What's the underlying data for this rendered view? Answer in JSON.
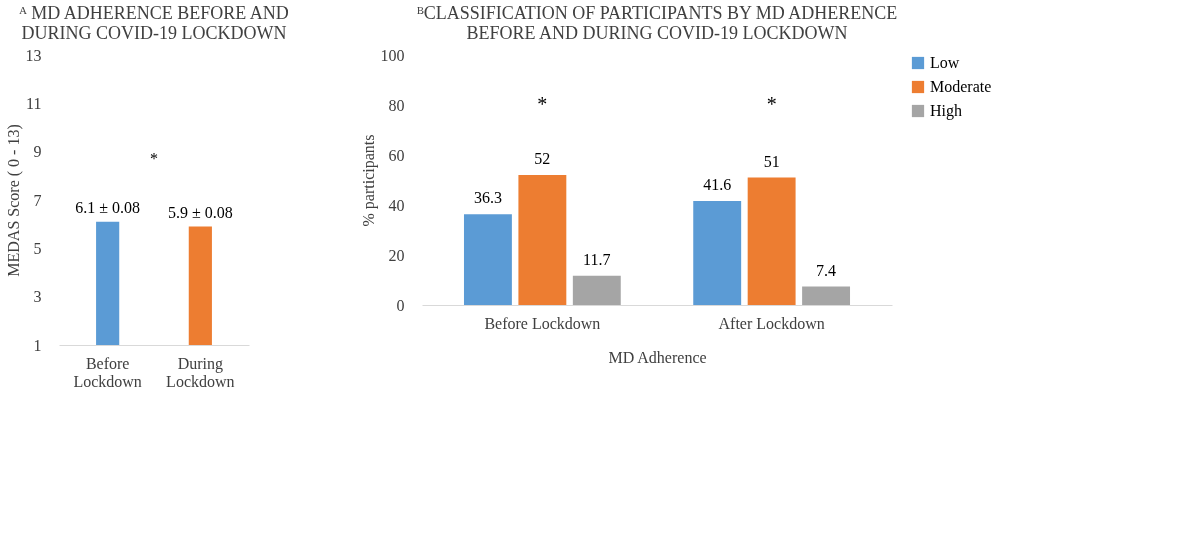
{
  "chart_data": [
    {
      "type": "bar",
      "title": "ᴬ MD ADHERENCE BEFORE AND DURING COVID-19 LOCKDOWN",
      "ylabel": "MEDAS Score  ( 0 - 13)",
      "categories": [
        "Before Lockdown",
        "During Lockdown"
      ],
      "values": [
        6.1,
        5.9
      ],
      "colors": [
        "#5b9bd5",
        "#ed7d31"
      ],
      "value_labels": [
        "6.1 ± 0.08",
        "5.9 ± 0.08"
      ],
      "ylim": [
        1,
        13
      ],
      "yticks": [
        1,
        3,
        5,
        7,
        9,
        11,
        13
      ],
      "grid": false,
      "annotations": [
        "*"
      ]
    },
    {
      "type": "bar",
      "title": "ᴮCLASSIFICATION OF PARTICIPANTS BY MD ADHERENCE BEFORE AND DURING COVID-19 LOCKDOWN",
      "xlabel": "MD Adherence",
      "ylabel": "% participants",
      "categories": [
        "Before Lockdown",
        "After Lockdown"
      ],
      "series": [
        {
          "name": "Low",
          "color": "#5b9bd5",
          "values": [
            36.3,
            41.6
          ]
        },
        {
          "name": "Moderate",
          "color": "#ed7d31",
          "values": [
            52,
            51
          ]
        },
        {
          "name": "High",
          "color": "#a5a5a5",
          "values": [
            11.7,
            7.4
          ]
        }
      ],
      "ylim": [
        0,
        100
      ],
      "yticks": [
        0,
        20,
        40,
        60,
        80,
        100
      ],
      "grid": false,
      "legend": "right",
      "data_labels": true,
      "annotations": [
        "*",
        "*"
      ]
    }
  ]
}
